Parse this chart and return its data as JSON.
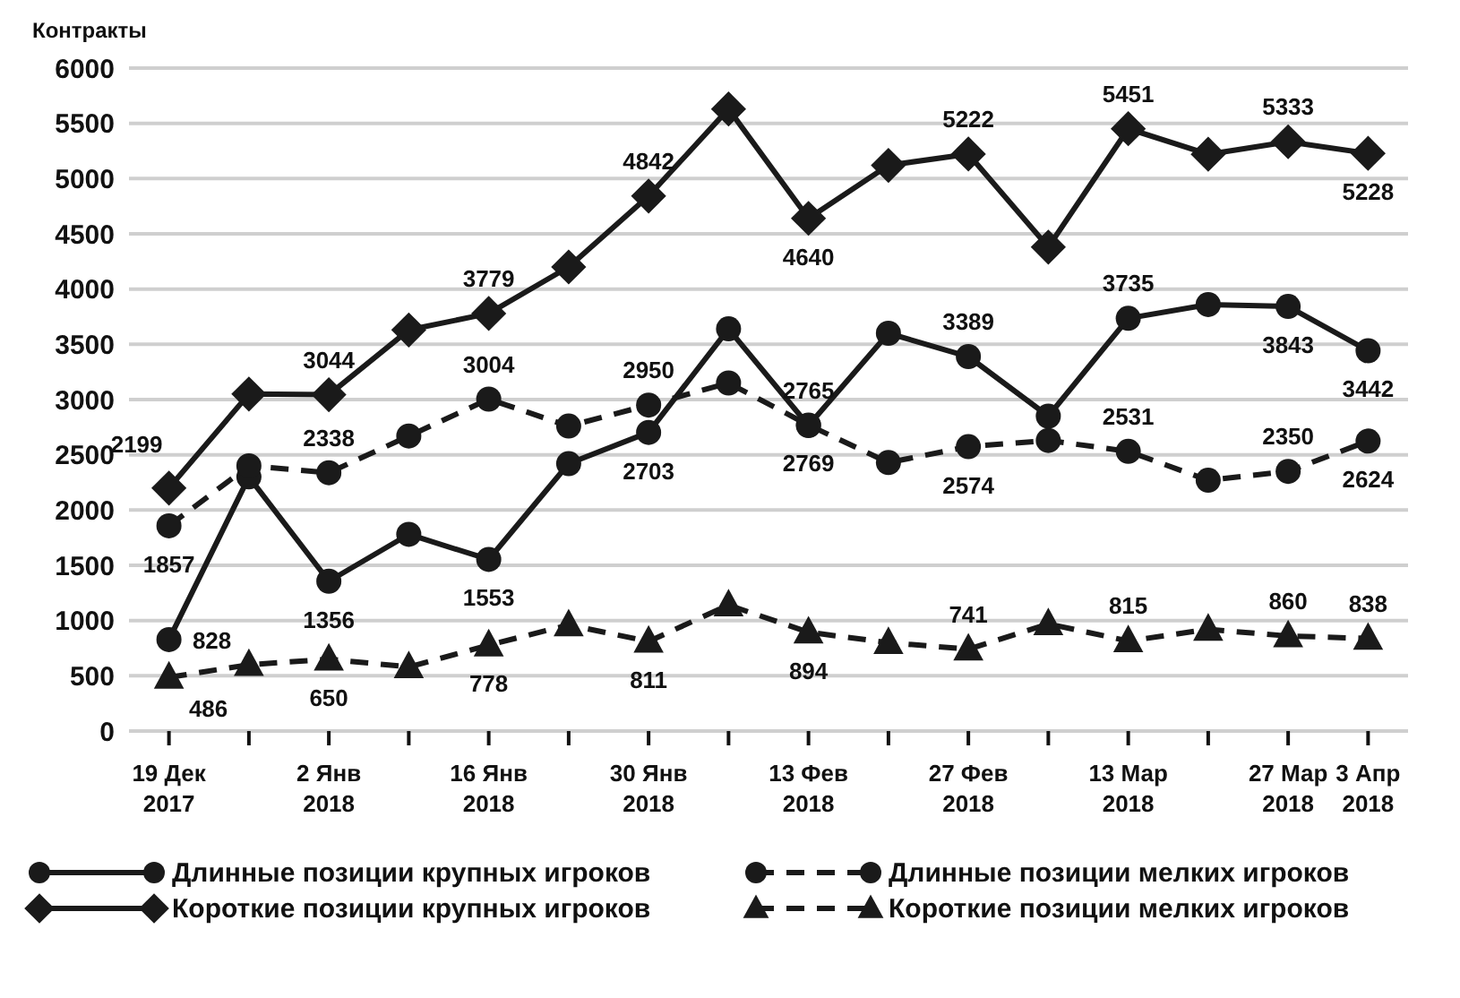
{
  "chart_data": {
    "type": "line",
    "ylabel": "Контракты",
    "categories": [
      "19 Дек 2017",
      null,
      "2 Янв 2018",
      null,
      "16 Янв 2018",
      null,
      "30 Янв 2018",
      null,
      "13 Фев 2018",
      null,
      "27 Фев 2018",
      null,
      "13 Мар 2018",
      null,
      "27 Мар 2018",
      "3 Апр 2018"
    ],
    "ylim": [
      0,
      6000
    ],
    "yticks": [
      0,
      500,
      1000,
      1500,
      2000,
      2500,
      3000,
      3500,
      4000,
      4500,
      5000,
      5500,
      6000
    ],
    "grid": "y",
    "legend": "bottom",
    "series": [
      {
        "name": "Длинные позиции крупных игроков",
        "color": "#1a1a1a",
        "marker": "circle",
        "line_style": "solid",
        "values": [
          828,
          2300,
          1356,
          1780,
          1553,
          2420,
          2703,
          3640,
          2765,
          3600,
          3389,
          2850,
          3735,
          3860,
          3843,
          3442
        ],
        "value_labels": [
          "828",
          null,
          "1356",
          null,
          "1553",
          null,
          "2703",
          null,
          "2765",
          null,
          "3389",
          null,
          "3735",
          null,
          "3843",
          "3442"
        ]
      },
      {
        "name": "Короткие позиции крупных игроков",
        "color": "#1a1a1a",
        "marker": "diamond",
        "line_style": "solid",
        "values": [
          2199,
          3050,
          3044,
          3630,
          3779,
          4200,
          4842,
          5630,
          4640,
          5120,
          5222,
          4380,
          5451,
          5220,
          5333,
          5228
        ],
        "value_labels": [
          "2199",
          null,
          "3044",
          null,
          "3779",
          null,
          "4842",
          null,
          "4640",
          null,
          "5222",
          null,
          "5451",
          null,
          "5333",
          "5228"
        ]
      },
      {
        "name": "Длинные позиции мелких игроков",
        "color": "#1a1a1a",
        "marker": "circle",
        "line_style": "dashed",
        "values": [
          1857,
          2400,
          2338,
          2670,
          3004,
          2760,
          2950,
          3150,
          2769,
          2430,
          2574,
          2630,
          2531,
          2270,
          2350,
          2624
        ],
        "value_labels": [
          "1857",
          null,
          "2338",
          null,
          "3004",
          null,
          "2950",
          null,
          "2769",
          null,
          "2574",
          null,
          "2531",
          null,
          "2350",
          "2624"
        ]
      },
      {
        "name": "Короткие позиции мелких игроков",
        "color": "#1a1a1a",
        "marker": "triangle",
        "line_style": "dashed",
        "values": [
          486,
          600,
          650,
          580,
          778,
          960,
          811,
          1140,
          894,
          800,
          741,
          970,
          815,
          920,
          860,
          838
        ],
        "value_labels": [
          "486",
          null,
          "650",
          null,
          "778",
          null,
          "811",
          null,
          "894",
          null,
          "741",
          null,
          "815",
          null,
          "860",
          "838"
        ]
      }
    ]
  }
}
